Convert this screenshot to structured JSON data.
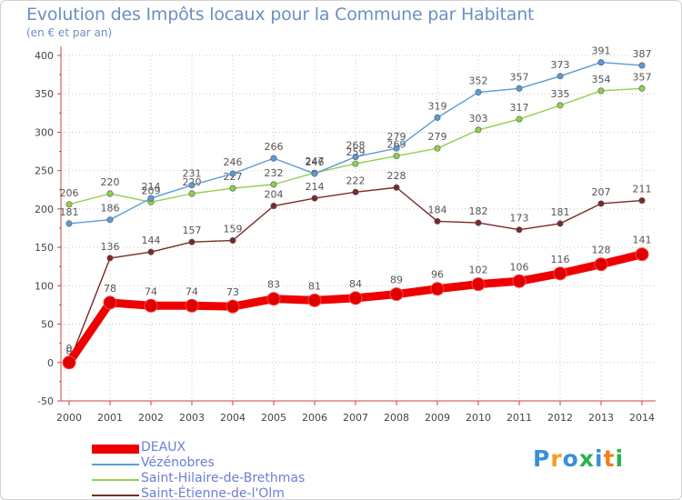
{
  "chart_data": {
    "type": "line",
    "title": "Evolution des Impôts locaux pour la Commune par Habitant",
    "subtitle": "(en € et par an)",
    "xlabel": "",
    "ylabel": "",
    "categories": [
      "2000",
      "2001",
      "2002",
      "2003",
      "2004",
      "2005",
      "2006",
      "2007",
      "2008",
      "2009",
      "2010",
      "2011",
      "2012",
      "2013",
      "2014"
    ],
    "ylim": [
      -50,
      400
    ],
    "yticks": [
      -50,
      0,
      50,
      100,
      150,
      200,
      250,
      300,
      350,
      400
    ],
    "grid": true,
    "legend_position": "bottom-left",
    "series": [
      {
        "name": "DEAUX",
        "color": "#ee0000",
        "values": [
          0,
          78,
          74,
          74,
          73,
          83,
          81,
          84,
          89,
          96,
          102,
          106,
          116,
          128,
          141
        ],
        "labels": [
          "0",
          "78",
          "74",
          "74",
          "73",
          "83",
          "81",
          "84",
          "89",
          "96",
          "102",
          "106",
          "116",
          "128",
          "141"
        ]
      },
      {
        "name": "Vézénobres",
        "color": "#5b9bd5",
        "values": [
          181,
          186,
          214,
          231,
          246,
          266,
          246,
          268,
          279,
          319,
          352,
          357,
          373,
          391,
          387
        ],
        "labels": [
          "181",
          "186",
          "214",
          "231",
          "246",
          "266",
          "246",
          "268",
          "279",
          "319",
          "352",
          "357",
          "373",
          "391",
          "387"
        ]
      },
      {
        "name": "Saint-Hilaire-de-Brethmas",
        "color": "#8fd14f",
        "values": [
          206,
          220,
          209,
          220,
          227,
          232,
          247,
          259,
          269,
          279,
          303,
          317,
          335,
          354,
          357
        ],
        "labels": [
          "206",
          "220",
          "209",
          "220",
          "227",
          "232",
          "247",
          "259",
          "269",
          "279",
          "303",
          "317",
          "335",
          "354",
          "357"
        ]
      },
      {
        "name": "Saint-Étienne-de-l'Olm",
        "color": "#7a2a2a",
        "values": [
          0,
          136,
          144,
          157,
          159,
          204,
          214,
          222,
          228,
          184,
          182,
          173,
          181,
          207,
          211
        ],
        "labels": [
          "0",
          "136",
          "144",
          "157",
          "159",
          "204",
          "214",
          "222",
          "228",
          "184",
          "182",
          "173",
          "181",
          "207",
          "211"
        ]
      }
    ]
  },
  "logo": {
    "letters": [
      "P",
      "r",
      "o",
      "x",
      "i",
      "t",
      "i"
    ],
    "colors": [
      "#3a8fd8",
      "#f0a020",
      "#3a8fd8",
      "#2bb24a",
      "#3a8fd8",
      "#f08020",
      "#2bb24a"
    ]
  }
}
